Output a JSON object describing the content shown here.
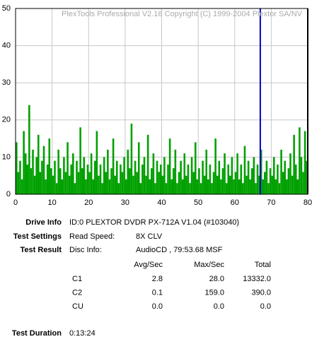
{
  "chart_data": {
    "type": "bar",
    "watermark": "PlexTools Professional V2.16 Copyright (C) 1999-2004 Plextor SA/NV",
    "x": [
      0,
      0.5,
      1,
      1.5,
      2,
      2.5,
      3,
      3.5,
      4,
      4.5,
      5,
      5.5,
      6,
      6.5,
      7,
      7.5,
      8,
      8.5,
      9,
      9.5,
      10,
      10.5,
      11,
      11.5,
      12,
      12.5,
      13,
      13.5,
      14,
      14.5,
      15,
      15.5,
      16,
      16.5,
      17,
      17.5,
      18,
      18.5,
      19,
      19.5,
      20,
      20.5,
      21,
      21.5,
      22,
      22.5,
      23,
      23.5,
      24,
      24.5,
      25,
      25.5,
      26,
      26.5,
      27,
      27.5,
      28,
      28.5,
      29,
      29.5,
      30,
      30.5,
      31,
      31.5,
      32,
      32.5,
      33,
      33.5,
      34,
      34.5,
      35,
      35.5,
      36,
      36.5,
      37,
      37.5,
      38,
      38.5,
      39,
      39.5,
      40,
      40.5,
      41,
      41.5,
      42,
      42.5,
      43,
      43.5,
      44,
      44.5,
      45,
      45.5,
      46,
      46.5,
      47,
      47.5,
      48,
      48.5,
      49,
      49.5,
      50,
      50.5,
      51,
      51.5,
      52,
      52.5,
      53,
      53.5,
      54,
      54.5,
      55,
      55.5,
      56,
      56.5,
      57,
      57.5,
      58,
      58.5,
      59,
      59.5,
      60,
      60.5,
      61,
      61.5,
      62,
      62.5,
      63,
      63.5,
      64,
      64.5,
      65,
      65.5,
      66,
      66.5,
      67,
      67.5,
      68,
      68.5,
      69,
      69.5,
      70,
      70.5,
      71,
      71.5,
      72,
      72.5,
      73,
      73.5,
      74,
      74.5,
      75,
      75.5,
      76,
      76.5,
      77,
      77.5,
      78,
      78.5,
      79,
      79.5
    ],
    "values": [
      14,
      6,
      9,
      4,
      17,
      11,
      8,
      24,
      7,
      12,
      5,
      10,
      16,
      6,
      9,
      13,
      4,
      8,
      15,
      7,
      5,
      9,
      3,
      12,
      7,
      4,
      10,
      6,
      14,
      5,
      8,
      11,
      3,
      9,
      6,
      18,
      7,
      10,
      4,
      8,
      6,
      11,
      4,
      9,
      17,
      5,
      8,
      3,
      10,
      6,
      12,
      4,
      7,
      15,
      5,
      9,
      3,
      8,
      6,
      10,
      4,
      12,
      7,
      19,
      5,
      9,
      6,
      14,
      3,
      8,
      10,
      5,
      16,
      4,
      7,
      11,
      3,
      9,
      6,
      8,
      5,
      10,
      3,
      8,
      15,
      4,
      7,
      12,
      3,
      6,
      9,
      4,
      11,
      5,
      8,
      3,
      10,
      6,
      14,
      4,
      7,
      3,
      9,
      5,
      12,
      4,
      8,
      3,
      6,
      15,
      5,
      9,
      4,
      7,
      11,
      3,
      8,
      5,
      10,
      4,
      6,
      11,
      4,
      8,
      3,
      13,
      5,
      9,
      4,
      7,
      10,
      3,
      8,
      5,
      12,
      4,
      6,
      9,
      3,
      7,
      5,
      10,
      4,
      8,
      3,
      12,
      6,
      9,
      4,
      7,
      11,
      5,
      16,
      8,
      4,
      18,
      10,
      6,
      17,
      9
    ],
    "color": "#00a000",
    "markers": [
      {
        "x": 67,
        "color": "#0000cc"
      },
      {
        "x": 80,
        "color": "#000000"
      }
    ],
    "xlim": [
      0,
      80
    ],
    "xticks": [
      0,
      10,
      20,
      30,
      40,
      50,
      60,
      70,
      80
    ],
    "ylim": [
      0,
      50
    ],
    "yticks": [
      0,
      10,
      20,
      30,
      40,
      50
    ],
    "grid": true
  },
  "info": {
    "drive_info": {
      "label": "Drive Info",
      "value": "ID:0 PLEXTOR DVDR PX-712A V1.04 (#103040)"
    },
    "test_settings": {
      "label": "Test Settings",
      "key": "Read Speed:",
      "value": "8X CLV"
    },
    "test_result": {
      "label": "Test Result",
      "key": "Disc Info:",
      "value": "AudioCD , 79:53.68 MSF"
    },
    "table": {
      "headers": [
        "Avg/Sec",
        "Max/Sec",
        "Total"
      ],
      "rows": [
        {
          "name": "C1",
          "values": [
            "2.8",
            "28.0",
            "13332.0"
          ]
        },
        {
          "name": "C2",
          "values": [
            "0.1",
            "159.0",
            "390.0"
          ]
        },
        {
          "name": "CU",
          "values": [
            "0.0",
            "0.0",
            "0.0"
          ]
        }
      ]
    },
    "test_duration": {
      "label": "Test Duration",
      "value": "0:13:24"
    }
  }
}
